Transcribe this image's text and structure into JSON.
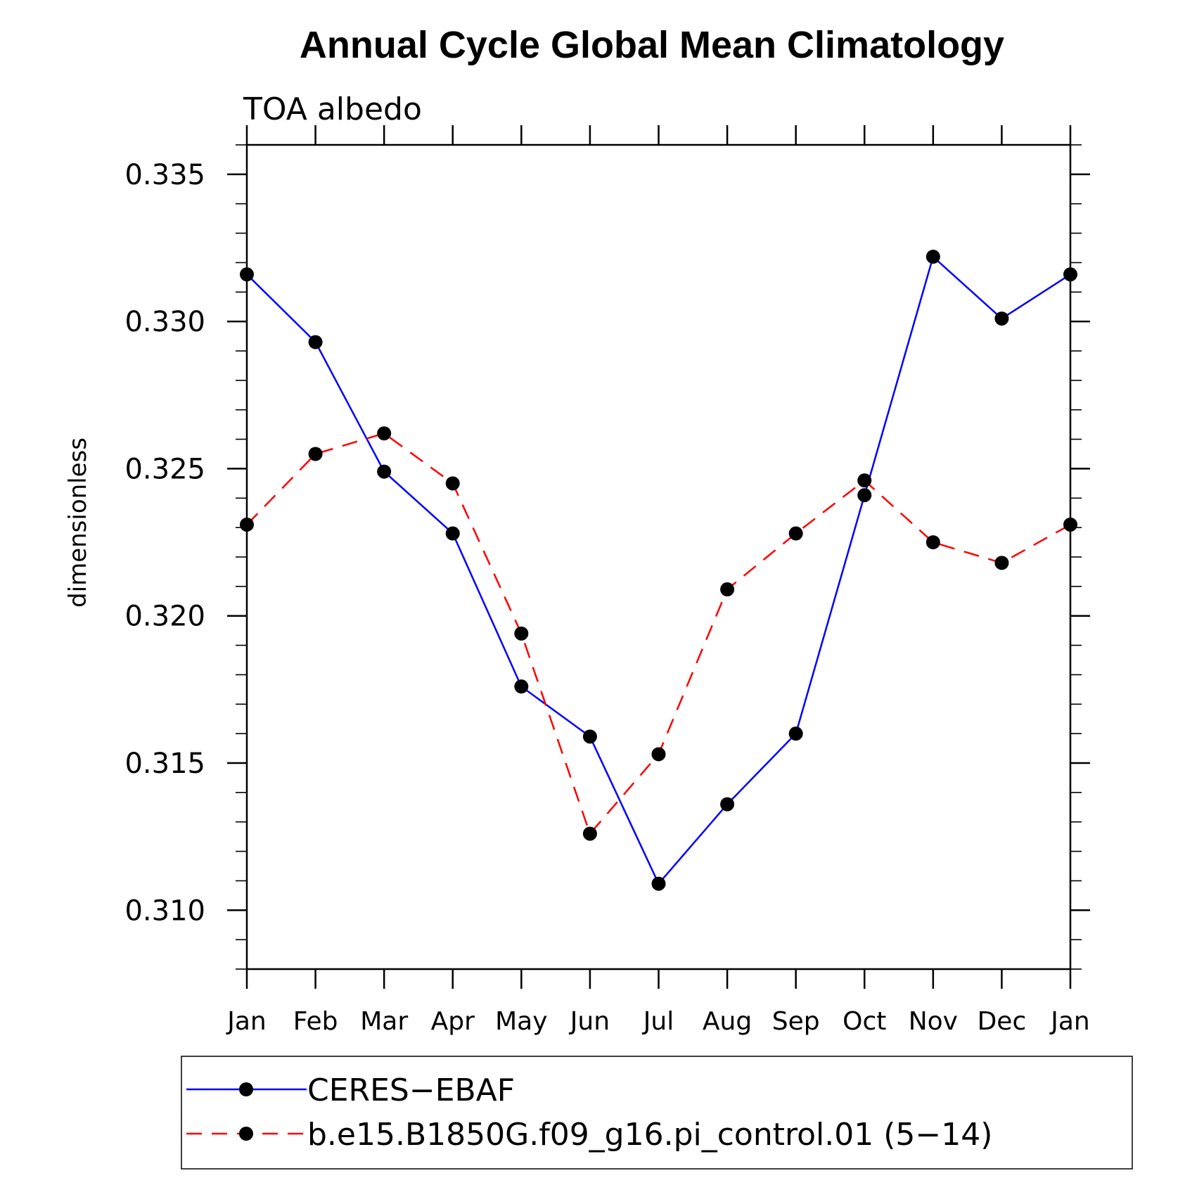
{
  "chart_data": {
    "type": "line",
    "title": "Annual Cycle Global Mean Climatology",
    "subtitle": "TOA albedo",
    "xlabel": "",
    "ylabel": "dimensionless",
    "categories": [
      "Jan",
      "Feb",
      "Mar",
      "Apr",
      "May",
      "Jun",
      "Jul",
      "Aug",
      "Sep",
      "Oct",
      "Nov",
      "Dec",
      "Jan"
    ],
    "ylim": [
      0.308,
      0.336
    ],
    "yticks": [
      "0.310",
      "0.315",
      "0.320",
      "0.325",
      "0.330",
      "0.335"
    ],
    "ytick_values": [
      0.31,
      0.315,
      0.32,
      0.325,
      0.33,
      0.335
    ],
    "y_minor_step": 0.001,
    "grid": false,
    "legend_position": "bottom",
    "series": [
      {
        "name": "CERES−EBAF",
        "color": "#0000ff",
        "line_style": "solid",
        "marker": "filled-circle",
        "values": [
          0.3316,
          0.3293,
          0.3249,
          0.3228,
          0.3176,
          0.3159,
          0.3109,
          0.3136,
          0.316,
          0.3241,
          0.3322,
          0.3301,
          0.3316
        ]
      },
      {
        "name": "b.e15.B1850G.f09_g16.pi_control.01 (5−14)",
        "color": "#ff0000",
        "line_style": "dashed",
        "marker": "filled-circle",
        "values": [
          0.3231,
          0.3255,
          0.3262,
          0.3245,
          0.3194,
          0.3126,
          0.3153,
          0.3209,
          0.3228,
          0.3246,
          0.3225,
          0.3218,
          0.3231
        ]
      }
    ]
  }
}
